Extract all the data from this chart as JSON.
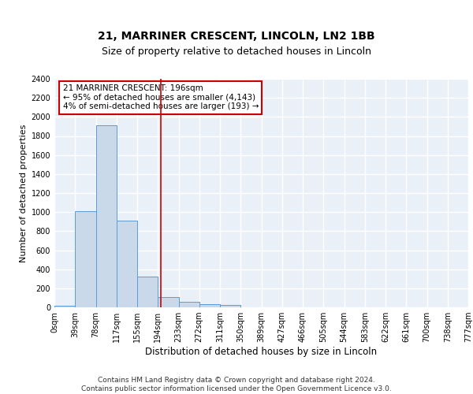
{
  "title1": "21, MARRINER CRESCENT, LINCOLN, LN2 1BB",
  "title2": "Size of property relative to detached houses in Lincoln",
  "xlabel": "Distribution of detached houses by size in Lincoln",
  "ylabel": "Number of detached properties",
  "bin_labels": [
    "0sqm",
    "39sqm",
    "78sqm",
    "117sqm",
    "155sqm",
    "194sqm",
    "233sqm",
    "272sqm",
    "311sqm",
    "350sqm",
    "389sqm",
    "427sqm",
    "466sqm",
    "505sqm",
    "544sqm",
    "583sqm",
    "622sqm",
    "661sqm",
    "700sqm",
    "738sqm",
    "777sqm"
  ],
  "bar_heights": [
    20,
    1010,
    1910,
    910,
    320,
    110,
    55,
    30,
    25,
    0,
    0,
    0,
    0,
    0,
    0,
    0,
    0,
    0,
    0,
    0
  ],
  "bar_color": "#c9d9ea",
  "bar_edge_color": "#5b9bd5",
  "red_line_x": 5.13,
  "ylim": [
    0,
    2400
  ],
  "yticks": [
    0,
    200,
    400,
    600,
    800,
    1000,
    1200,
    1400,
    1600,
    1800,
    2000,
    2200,
    2400
  ],
  "annotation_text": "21 MARRINER CRESCENT: 196sqm\n← 95% of detached houses are smaller (4,143)\n4% of semi-detached houses are larger (193) →",
  "annotation_box_color": "#ffffff",
  "annotation_box_edge_color": "#cc0000",
  "background_color": "#eaf0f8",
  "grid_color": "#ffffff",
  "footer_text": "Contains HM Land Registry data © Crown copyright and database right 2024.\nContains public sector information licensed under the Open Government Licence v3.0.",
  "title1_fontsize": 10,
  "title2_fontsize": 9,
  "xlabel_fontsize": 8.5,
  "ylabel_fontsize": 8,
  "tick_fontsize": 7,
  "annotation_fontsize": 7.5,
  "footer_fontsize": 6.5
}
